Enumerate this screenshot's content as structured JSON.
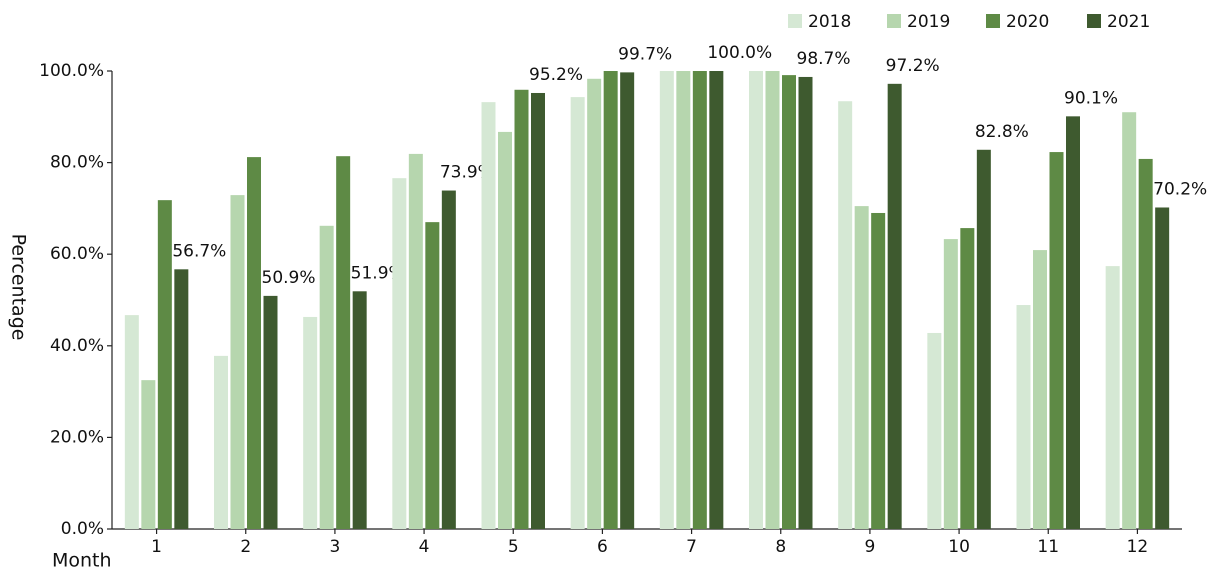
{
  "chart_data": {
    "type": "bar",
    "x_label": "Month",
    "y_label": "Percentage",
    "categories": [
      "1",
      "2",
      "3",
      "4",
      "5",
      "6",
      "7",
      "8",
      "9",
      "10",
      "11",
      "12"
    ],
    "series": [
      {
        "name": "2018",
        "color": "#d5e8d4",
        "values": [
          46.7,
          37.8,
          46.3,
          76.6,
          93.2,
          94.3,
          100,
          100,
          93.4,
          42.8,
          48.9,
          57.4
        ]
      },
      {
        "name": "2019",
        "color": "#b6d6ae",
        "values": [
          32.5,
          72.9,
          66.2,
          81.9,
          86.7,
          98.3,
          100,
          100,
          70.5,
          63.3,
          60.9,
          91.0
        ]
      },
      {
        "name": "2020",
        "color": "#5e8a45",
        "values": [
          71.8,
          81.2,
          81.4,
          67.0,
          95.9,
          100,
          100,
          99.1,
          69.0,
          65.7,
          82.3,
          80.8
        ]
      },
      {
        "name": "2021",
        "color": "#3e5a2f",
        "values": [
          56.7,
          50.9,
          51.9,
          73.9,
          95.2,
          99.7,
          100.0,
          98.7,
          97.2,
          82.8,
          90.1,
          70.2
        ],
        "value_labels": [
          "56.7%",
          "50.9%",
          "51.9%",
          "73.9%",
          "95.2%",
          "99.7%",
          "100.0%",
          "98.7%",
          "97.2%",
          "82.8%",
          "90.1%",
          "70.2%"
        ]
      }
    ],
    "ylim": [
      0,
      100
    ],
    "yticks": [
      {
        "value": 0,
        "label": "0.0%"
      },
      {
        "value": 20,
        "label": "20.0%"
      },
      {
        "value": 40,
        "label": "40.0%"
      },
      {
        "value": 60,
        "label": "60.0%"
      },
      {
        "value": 80,
        "label": "80.0%"
      },
      {
        "value": 100,
        "label": "100.0%"
      }
    ],
    "legend": "top-right",
    "grid": false
  }
}
